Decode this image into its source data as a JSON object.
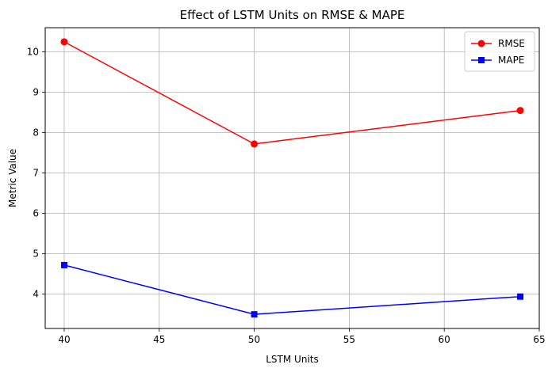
{
  "chart_data": {
    "type": "line",
    "title": "Effect of LSTM Units on RMSE & MAPE",
    "xlabel": "LSTM Units",
    "ylabel": "Metric Value",
    "x": [
      40,
      50,
      64
    ],
    "xlim": [
      39.0,
      65.0
    ],
    "ylim": [
      3.15,
      10.6
    ],
    "xticks": [
      40,
      45,
      50,
      55,
      60,
      65
    ],
    "yticks": [
      4,
      5,
      6,
      7,
      8,
      9,
      10
    ],
    "grid": true,
    "legend_position": "top-right",
    "series": [
      {
        "name": "RMSE",
        "values": [
          10.25,
          7.72,
          8.55
        ],
        "color": "#ff0000",
        "marker": "circle"
      },
      {
        "name": "MAPE",
        "values": [
          4.72,
          3.5,
          3.94
        ],
        "color": "#0000ff",
        "marker": "square"
      }
    ]
  }
}
